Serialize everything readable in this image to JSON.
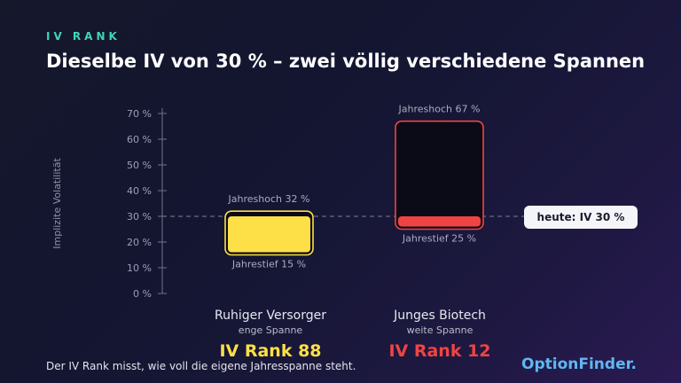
{
  "kicker": "IV RANK",
  "title": "Dieselbe IV von 30 % – zwei völlig verschiedene Spannen",
  "footer": "Der IV Rank misst, wie voll die eigene Jahresspanne steht.",
  "brand": "OptionFinder.",
  "today_label": "heute:  IV 30 %",
  "colors": {
    "yellow": "#fde047",
    "red": "#ef4444",
    "teal": "#3fd6b4",
    "brand": "#5fb7f2"
  },
  "chart_data": {
    "type": "bar",
    "ylabel": "Implizite Volatilität",
    "ylim": [
      0,
      70
    ],
    "yticks": [
      0,
      10,
      20,
      30,
      40,
      50,
      60,
      70
    ],
    "ytick_labels": [
      "0 %",
      "10 %",
      "20 %",
      "30 %",
      "40 %",
      "50 %",
      "60 %",
      "70 %"
    ],
    "reference_line": 30,
    "series": [
      {
        "name": "Ruhiger Versorger",
        "subtitle": "enge Spanne",
        "low": 15,
        "high": 32,
        "current": 30,
        "high_label": "Jahreshoch 32 %",
        "low_label": "Jahrestief 15 %",
        "rank_label": "IV Rank 88",
        "fill_fraction": 0.88,
        "color": "#fde047"
      },
      {
        "name": "Junges Biotech",
        "subtitle": "weite Spanne",
        "low": 25,
        "high": 67,
        "current": 30,
        "high_label": "Jahreshoch 67 %",
        "low_label": "Jahrestief 25 %",
        "rank_label": "IV Rank 12",
        "fill_fraction": 0.12,
        "color": "#ef4444"
      }
    ]
  }
}
